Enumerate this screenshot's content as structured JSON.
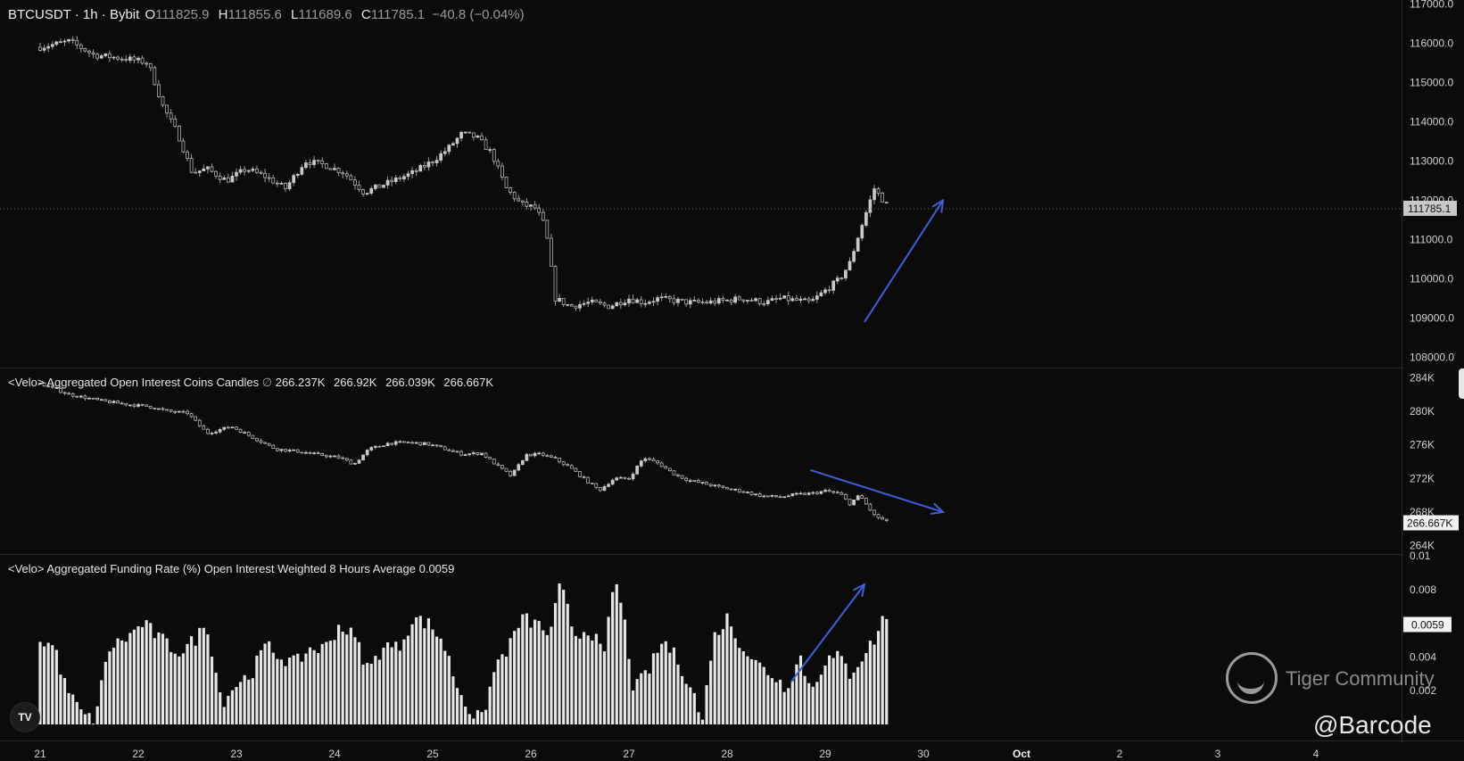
{
  "header": {
    "symbol": "BTCUSDT",
    "interval": "1h",
    "exchange": "Bybit",
    "open_label": "O",
    "open": "111825.9",
    "high_label": "H",
    "high": "111855.6",
    "low_label": "L",
    "low": "111689.6",
    "close_label": "C",
    "close": "111785.1",
    "change": "−40.8 (−0.04%)"
  },
  "oi_label": {
    "title": "<Velo> Aggregated Open Interest Coins Candles",
    "symbol": "∅",
    "values": [
      "266.237K",
      "266.92K",
      "266.039K",
      "266.667K"
    ]
  },
  "fr_label": {
    "title": "<Velo> Aggregated Funding Rate (%) Open Interest Weighted 8 Hours Average",
    "value": "0.0059"
  },
  "watermark": {
    "brand": "Tiger Community",
    "handle": "@Barcode"
  },
  "logo_text": "TV",
  "colors": {
    "background": "#0b0b0b",
    "candle": "#c8c8c8",
    "arrow": "#3f5fd6",
    "axis_text": "#d0d0d0",
    "separator": "#2a2a2a"
  },
  "chart_data": [
    {
      "type": "candlestick",
      "title": "BTCUSDT · 1h · Bybit",
      "x_axis": {
        "ticks": [
          "21",
          "22",
          "23",
          "24",
          "25",
          "26",
          "27",
          "28",
          "29",
          "30",
          "Oct",
          "2",
          "3",
          "4"
        ]
      },
      "y_axis": {
        "ticks": [
          "108000.0",
          "109000.0",
          "110000.0",
          "111000.0",
          "112000.0",
          "113000.0",
          "114000.0",
          "115000.0",
          "116000.0",
          "117000.0"
        ],
        "range": [
          107900,
          117100
        ]
      },
      "last_price": "111785.1",
      "keypoints": [
        [
          0,
          115900
        ],
        [
          0.3,
          116050
        ],
        [
          0.55,
          115700
        ],
        [
          0.9,
          115600
        ],
        [
          1.1,
          115500
        ],
        [
          1.25,
          114400
        ],
        [
          1.4,
          113700
        ],
        [
          1.55,
          112700
        ],
        [
          1.7,
          112800
        ],
        [
          1.9,
          112500
        ],
        [
          2.1,
          112800
        ],
        [
          2.3,
          112600
        ],
        [
          2.5,
          112300
        ],
        [
          2.7,
          113000
        ],
        [
          2.9,
          112900
        ],
        [
          3.1,
          112700
        ],
        [
          3.3,
          112200
        ],
        [
          3.5,
          112400
        ],
        [
          3.6,
          112500
        ],
        [
          3.8,
          112700
        ],
        [
          4.0,
          113000
        ],
        [
          4.15,
          113300
        ],
        [
          4.3,
          113700
        ],
        [
          4.45,
          113600
        ],
        [
          4.6,
          113200
        ],
        [
          4.75,
          112300
        ],
        [
          4.9,
          111900
        ],
        [
          5.05,
          111800
        ],
        [
          5.15,
          111300
        ],
        [
          5.25,
          109500
        ],
        [
          5.4,
          109300
        ],
        [
          5.6,
          109400
        ],
        [
          5.8,
          109300
        ],
        [
          6.0,
          109500
        ],
        [
          6.15,
          109400
        ],
        [
          6.3,
          109500
        ],
        [
          6.6,
          109400
        ],
        [
          6.8,
          109400
        ],
        [
          7.0,
          109450
        ],
        [
          7.15,
          109500
        ],
        [
          7.4,
          109400
        ],
        [
          7.55,
          109500
        ],
        [
          7.7,
          109450
        ],
        [
          7.85,
          109400
        ],
        [
          8.0,
          109700
        ],
        [
          8.15,
          110000
        ],
        [
          8.25,
          110400
        ],
        [
          8.35,
          111200
        ],
        [
          8.5,
          112300
        ],
        [
          8.65,
          111800
        ]
      ],
      "volatility": 200,
      "annotation_arrow": {
        "from": [
          8.4,
          108900
        ],
        "to": [
          9.2,
          112000
        ]
      }
    },
    {
      "type": "candlestick",
      "title": "<Velo> Aggregated Open Interest Coins Candles",
      "y_axis": {
        "ticks": [
          "264K",
          "268K",
          "272K",
          "276K",
          "280K",
          "284K"
        ],
        "range": [
          263000,
          285000
        ]
      },
      "last_value": "266.667K",
      "keypoints": [
        [
          0,
          283300
        ],
        [
          0.3,
          282000
        ],
        [
          0.6,
          281300
        ],
        [
          0.9,
          280800
        ],
        [
          1.1,
          280600
        ],
        [
          1.3,
          280000
        ],
        [
          1.5,
          279800
        ],
        [
          1.7,
          277400
        ],
        [
          1.95,
          278200
        ],
        [
          2.2,
          276700
        ],
        [
          2.4,
          275500
        ],
        [
          2.65,
          275200
        ],
        [
          2.85,
          274800
        ],
        [
          3.05,
          274500
        ],
        [
          3.2,
          273700
        ],
        [
          3.35,
          275500
        ],
        [
          3.55,
          276200
        ],
        [
          3.75,
          276300
        ],
        [
          3.95,
          276100
        ],
        [
          4.1,
          275600
        ],
        [
          4.3,
          274900
        ],
        [
          4.5,
          275000
        ],
        [
          4.65,
          273600
        ],
        [
          4.8,
          272300
        ],
        [
          4.95,
          274800
        ],
        [
          5.1,
          274900
        ],
        [
          5.25,
          274300
        ],
        [
          5.4,
          273300
        ],
        [
          5.55,
          271900
        ],
        [
          5.7,
          270600
        ],
        [
          5.85,
          272000
        ],
        [
          6.0,
          272000
        ],
        [
          6.15,
          274500
        ],
        [
          6.3,
          273800
        ],
        [
          6.45,
          272600
        ],
        [
          6.6,
          271800
        ],
        [
          6.8,
          271300
        ],
        [
          6.95,
          270900
        ],
        [
          7.15,
          270500
        ],
        [
          7.35,
          269900
        ],
        [
          7.55,
          269800
        ],
        [
          7.7,
          270100
        ],
        [
          7.85,
          270200
        ],
        [
          8.0,
          270500
        ],
        [
          8.15,
          270200
        ],
        [
          8.25,
          269000
        ],
        [
          8.35,
          270000
        ],
        [
          8.5,
          267600
        ],
        [
          8.65,
          266700
        ]
      ],
      "volatility": 400,
      "annotation_arrow": {
        "from": [
          7.85,
          273000
        ],
        "to": [
          9.2,
          268000
        ]
      }
    },
    {
      "type": "bar",
      "title": "<Velo> Aggregated Funding Rate (%) Open Interest Weighted 8 Hours Average",
      "y_axis": {
        "ticks": [
          "0.002",
          "0.004",
          "0.006",
          "0.008",
          "0.01"
        ],
        "range": [
          0,
          0.01
        ]
      },
      "last_value": "0.0059",
      "keypoints": [
        [
          0,
          0.005
        ],
        [
          0.15,
          0.0046
        ],
        [
          0.25,
          0.0024
        ],
        [
          0.4,
          0.0008
        ],
        [
          0.55,
          0.0001
        ],
        [
          0.7,
          0.0045
        ],
        [
          0.9,
          0.0052
        ],
        [
          1.05,
          0.006
        ],
        [
          1.2,
          0.0052
        ],
        [
          1.35,
          0.0045
        ],
        [
          1.45,
          0.0043
        ],
        [
          1.6,
          0.0052
        ],
        [
          1.7,
          0.006
        ],
        [
          1.85,
          0.0013
        ],
        [
          2.0,
          0.0024
        ],
        [
          2.15,
          0.003
        ],
        [
          2.3,
          0.0047
        ],
        [
          2.45,
          0.004
        ],
        [
          2.6,
          0.0036
        ],
        [
          2.75,
          0.0045
        ],
        [
          2.9,
          0.0045
        ],
        [
          3.05,
          0.0059
        ],
        [
          3.2,
          0.0052
        ],
        [
          3.35,
          0.0032
        ],
        [
          3.5,
          0.0047
        ],
        [
          3.65,
          0.0045
        ],
        [
          3.8,
          0.0063
        ],
        [
          3.95,
          0.006
        ],
        [
          4.1,
          0.005
        ],
        [
          4.25,
          0.0023
        ],
        [
          4.4,
          0.0006
        ],
        [
          4.5,
          0.0003
        ],
        [
          4.65,
          0.0036
        ],
        [
          4.8,
          0.0048
        ],
        [
          4.9,
          0.0063
        ],
        [
          5.05,
          0.006
        ],
        [
          5.2,
          0.0053
        ],
        [
          5.3,
          0.0083
        ],
        [
          5.45,
          0.0053
        ],
        [
          5.6,
          0.0057
        ],
        [
          5.75,
          0.004
        ],
        [
          5.85,
          0.0088
        ],
        [
          5.95,
          0.0063
        ],
        [
          6.05,
          0.002
        ],
        [
          6.2,
          0.0032
        ],
        [
          6.35,
          0.005
        ],
        [
          6.5,
          0.0038
        ],
        [
          6.65,
          0.002
        ],
        [
          6.75,
          0.0001
        ],
        [
          6.85,
          0.005
        ],
        [
          7.0,
          0.0063
        ],
        [
          7.15,
          0.0047
        ],
        [
          7.3,
          0.0036
        ],
        [
          7.45,
          0.003
        ],
        [
          7.6,
          0.0022
        ],
        [
          7.75,
          0.004
        ],
        [
          7.85,
          0.002
        ],
        [
          8.0,
          0.0038
        ],
        [
          8.15,
          0.004
        ],
        [
          8.25,
          0.003
        ],
        [
          8.4,
          0.0042
        ],
        [
          8.5,
          0.005
        ],
        [
          8.6,
          0.0065
        ],
        [
          8.65,
          0.0059
        ]
      ],
      "volatility": 0.0009,
      "annotation_arrow": {
        "from": [
          7.65,
          0.0025
        ],
        "to": [
          8.4,
          0.0083
        ]
      }
    }
  ]
}
